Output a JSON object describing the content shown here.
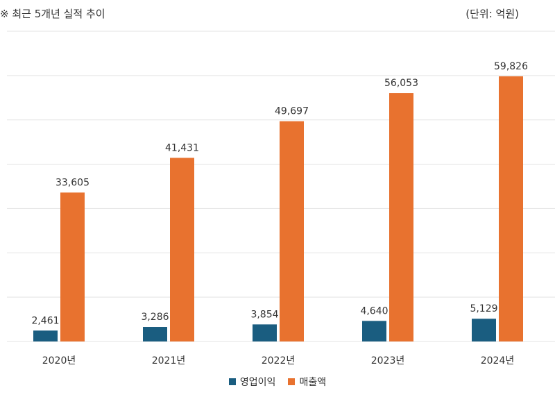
{
  "header": {
    "title": "※ 최근 5개년 실적 추이",
    "unit": "(단위: 억원)"
  },
  "colors": {
    "operating_profit": "#1a5d80",
    "revenue": "#e8722f",
    "grid": "#e3e3e3"
  },
  "chart_data": {
    "type": "bar",
    "title": "최근 5개년 실적 추이",
    "unit": "억원",
    "categories": [
      "2020년",
      "2021년",
      "2022년",
      "2023년",
      "2024년"
    ],
    "series": [
      {
        "name": "영업이익",
        "values": [
          2461,
          3286,
          3854,
          4640,
          5129
        ]
      },
      {
        "name": "매출액",
        "values": [
          33605,
          41431,
          49697,
          56053,
          59826
        ]
      }
    ],
    "value_labels": [
      [
        "2,461",
        "3,286",
        "3,854",
        "4,640",
        "5,129"
      ],
      [
        "33,605",
        "41,431",
        "49,697",
        "56,053",
        "59,826"
      ]
    ],
    "ylim": [
      0,
      70000
    ],
    "grid": true,
    "legend": "bottom-center"
  }
}
